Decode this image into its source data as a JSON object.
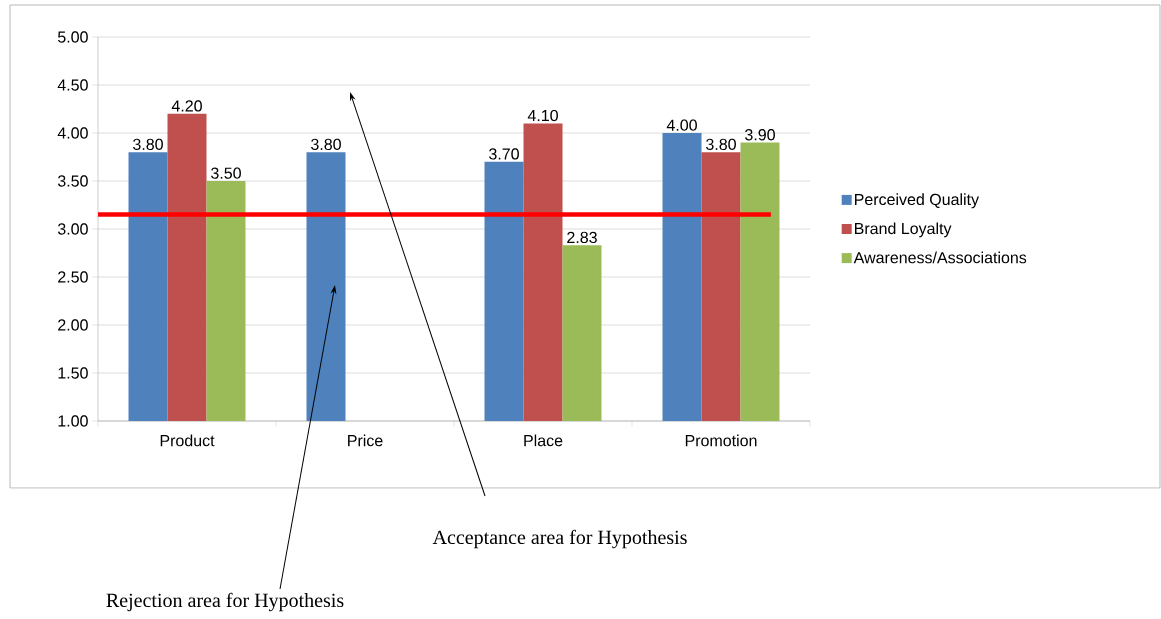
{
  "chart_data": {
    "type": "bar",
    "categories": [
      "Product",
      "Price",
      "Place",
      "Promotion"
    ],
    "series": [
      {
        "name": "Perceived Quality",
        "color": "#4f81bd",
        "values": [
          3.8,
          3.8,
          3.7,
          4.0
        ],
        "value_labels": [
          "3.80",
          "3.80",
          "3.70",
          "4.00"
        ]
      },
      {
        "name": "Brand Loyalty",
        "color": "#c0504d",
        "values": [
          4.2,
          1.0,
          4.1,
          3.8
        ],
        "value_labels": [
          "4.20",
          null,
          "4.10",
          "3.80"
        ]
      },
      {
        "name": "Awareness/Associations",
        "color": "#9bbb59",
        "values": [
          3.5,
          1.0,
          2.83,
          3.9
        ],
        "value_labels": [
          "3.50",
          null,
          "2.83",
          "3.90"
        ]
      }
    ],
    "ylim": [
      1,
      5
    ],
    "yticks": [
      {
        "value": 1,
        "label": "1.00"
      },
      {
        "value": 1.5,
        "label": "1.50"
      },
      {
        "value": 2,
        "label": "2.00"
      },
      {
        "value": 2.5,
        "label": "2.50"
      },
      {
        "value": 3,
        "label": "3.00"
      },
      {
        "value": 3.5,
        "label": "3.50"
      },
      {
        "value": 4,
        "label": "4.00"
      },
      {
        "value": 4.5,
        "label": "4.50"
      },
      {
        "value": 5,
        "label": "5.00"
      }
    ],
    "grid": "y",
    "legend": "right",
    "ref_lines": [
      {
        "axis": "y",
        "value": 3.15,
        "color": "#ff0000"
      }
    ],
    "annotations": [
      "Acceptance area for Hypothesis",
      "Rejection area for Hypothesis"
    ]
  }
}
